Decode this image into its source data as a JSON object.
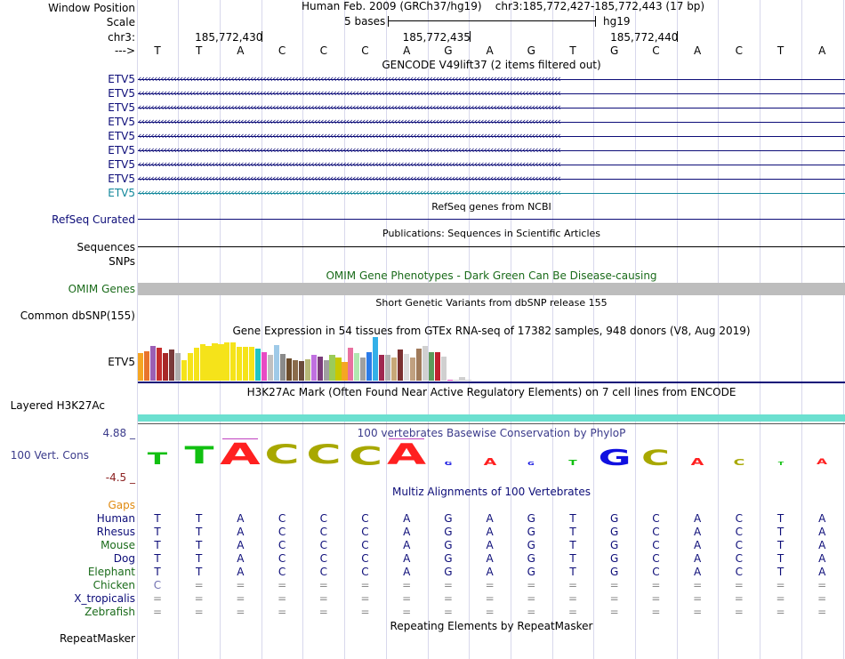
{
  "header": {
    "window_position_label": "Window Position",
    "scale_label": "Scale",
    "chrom_label": "chr3:",
    "strand_label": "--->",
    "assembly_text": "Human Feb. 2009 (GRCh37/hg19)",
    "position_text": "chr3:185,772,427-185,772,443 (17 bp)",
    "scale_text": "5 bases",
    "scale_assembly": "hg19",
    "ruler_ticks": [
      "185,772,430",
      "185,772,435",
      "185,772,440"
    ],
    "bases": [
      "T",
      "T",
      "A",
      "C",
      "C",
      "C",
      "A",
      "G",
      "A",
      "G",
      "T",
      "G",
      "C",
      "A",
      "C",
      "T",
      "A"
    ]
  },
  "gencode": {
    "title": "GENCODE V49lift37 (2 items filtered out)",
    "genes": [
      "ETV5",
      "ETV5",
      "ETV5",
      "ETV5",
      "ETV5",
      "ETV5",
      "ETV5",
      "ETV5",
      "ETV5"
    ],
    "colors": {
      "gene": "#0c0c78",
      "gene_last": "#12879b"
    }
  },
  "refseq": {
    "label": "RefSeq Curated",
    "title": "RefSeq genes from NCBI"
  },
  "publications": {
    "label": "Sequences",
    "title": "Publications: Sequences in Scientific Articles"
  },
  "snps": {
    "label": "SNPs"
  },
  "omim": {
    "label": "OMIM Genes",
    "title": "OMIM Gene Phenotypes - Dark Green Can Be Disease-causing",
    "color": "#1a6b1a"
  },
  "dbsnp": {
    "label": "Common dbSNP(155)",
    "title": "Short Genetic Variants from dbSNP release 155"
  },
  "gtex": {
    "label": "ETV5",
    "title": "Gene Expression in 54 tissues from GTEx RNA-seq of 17382 samples, 948 donors (V8, Aug 2019)",
    "bar_levels": [
      0.62,
      0.66,
      0.78,
      0.74,
      0.62,
      0.7,
      0.62,
      0.46,
      0.62,
      0.74,
      0.82,
      0.78,
      0.84,
      0.82,
      0.86,
      0.86,
      0.76,
      0.76,
      0.76,
      0.72,
      0.64,
      0.58,
      0.8,
      0.6,
      0.5,
      0.46,
      0.44,
      0.48,
      0.58,
      0.54,
      0.46,
      0.58,
      0.52,
      0.42,
      0.74,
      0.62,
      0.52,
      0.64,
      0.98,
      0.58,
      0.58,
      0.52,
      0.7,
      0.6,
      0.52,
      0.72,
      0.78,
      0.64,
      0.64,
      0.54,
      0.02,
      0.02,
      0.08,
      0.02
    ],
    "bar_colors": [
      "#f5a623",
      "#e8742c",
      "#9b5fb5",
      "#c42d2d",
      "#a82828",
      "#7a3b3b",
      "#b0b0b0",
      "#f5e31a",
      "#f5e31a",
      "#f5e31a",
      "#f5e31a",
      "#f5e31a",
      "#f5e31a",
      "#f5e31a",
      "#f5e31a",
      "#f5e31a",
      "#f5e31a",
      "#f5e31a",
      "#f5e31a",
      "#1fc4c4",
      "#e84ac4",
      "#c0c0c0",
      "#9fcae8",
      "#8a8a8a",
      "#6b4b2b",
      "#8a6b4b",
      "#6b4b3b",
      "#b8b878",
      "#c070e0",
      "#7a3b7a",
      "#a0a0a0",
      "#9bcb59",
      "#c8c800",
      "#f5a623",
      "#e870a0",
      "#b0e8b0",
      "#a0a0a0",
      "#2b7be8",
      "#33b0e8",
      "#a02850",
      "#b0b0b0",
      "#c8a878",
      "#7a3030",
      "#dddddd",
      "#c0a080",
      "#a07a5a",
      "#d0d0d0",
      "#5b9b5b",
      "#c02030",
      "#d0d0d0",
      "#e040c0",
      "#d0d0d0",
      "#d0d0d0",
      "#d0d0d0"
    ]
  },
  "h3k27ac": {
    "label": "Layered H3K27Ac",
    "title": "H3K27Ac Mark (Often Found Near Active Regulatory Elements) on 7 cell lines from ENCODE",
    "color": "#6ce0d0"
  },
  "phylop": {
    "label": "100 Vert. Cons",
    "title": "100 vertebrates Basewise Conservation by PhyloP",
    "max_label": "4.88 _",
    "min_label": "-4.5 _",
    "max": 4.88,
    "min": -4.5,
    "scores": [
      1.9,
      2.8,
      3.4,
      3.1,
      3.1,
      3.0,
      3.3,
      0.6,
      1.1,
      0.45,
      0.8,
      2.6,
      2.5,
      1.1,
      1.0,
      0.15,
      0.9
    ],
    "letter_colors": {
      "A": "#ff2020",
      "C": "#a8a800",
      "G": "#1010e0",
      "T": "#11c011"
    }
  },
  "multiz": {
    "title": "Multiz Alignments of 100 Vertebrates",
    "gaps_label": "Gaps",
    "species": [
      {
        "name": "Human",
        "seq": [
          "T",
          "T",
          "A",
          "C",
          "C",
          "C",
          "A",
          "G",
          "A",
          "G",
          "T",
          "G",
          "C",
          "A",
          "C",
          "T",
          "A"
        ]
      },
      {
        "name": "Rhesus",
        "seq": [
          "T",
          "T",
          "A",
          "C",
          "C",
          "C",
          "A",
          "G",
          "A",
          "G",
          "T",
          "G",
          "C",
          "A",
          "C",
          "T",
          "A"
        ]
      },
      {
        "name": "Mouse",
        "seq": [
          "T",
          "T",
          "A",
          "C",
          "C",
          "C",
          "A",
          "G",
          "A",
          "G",
          "T",
          "G",
          "C",
          "A",
          "C",
          "T",
          "A"
        ]
      },
      {
        "name": "Dog",
        "seq": [
          "T",
          "T",
          "A",
          "C",
          "C",
          "C",
          "A",
          "G",
          "A",
          "G",
          "T",
          "G",
          "C",
          "A",
          "C",
          "T",
          "A"
        ]
      },
      {
        "name": "Elephant",
        "seq": [
          "T",
          "T",
          "A",
          "C",
          "C",
          "C",
          "A",
          "G",
          "A",
          "G",
          "T",
          "G",
          "C",
          "A",
          "C",
          "T",
          "A"
        ]
      },
      {
        "name": "Chicken",
        "seq": [
          "C",
          "=",
          "=",
          "=",
          "=",
          "=",
          "=",
          "=",
          "=",
          "=",
          "=",
          "=",
          "=",
          "=",
          "=",
          "=",
          "="
        ]
      },
      {
        "name": "X_tropicalis",
        "seq": [
          "=",
          "=",
          "=",
          "=",
          "=",
          "=",
          "=",
          "=",
          "=",
          "=",
          "=",
          "=",
          "=",
          "=",
          "=",
          "=",
          "="
        ]
      },
      {
        "name": "Zebrafish",
        "seq": [
          "=",
          "=",
          "=",
          "=",
          "=",
          "=",
          "=",
          "=",
          "=",
          "=",
          "=",
          "=",
          "=",
          "=",
          "=",
          "=",
          "="
        ]
      }
    ]
  },
  "repeatmasker": {
    "label": "RepeatMasker",
    "title": "Repeating Elements by RepeatMasker"
  }
}
